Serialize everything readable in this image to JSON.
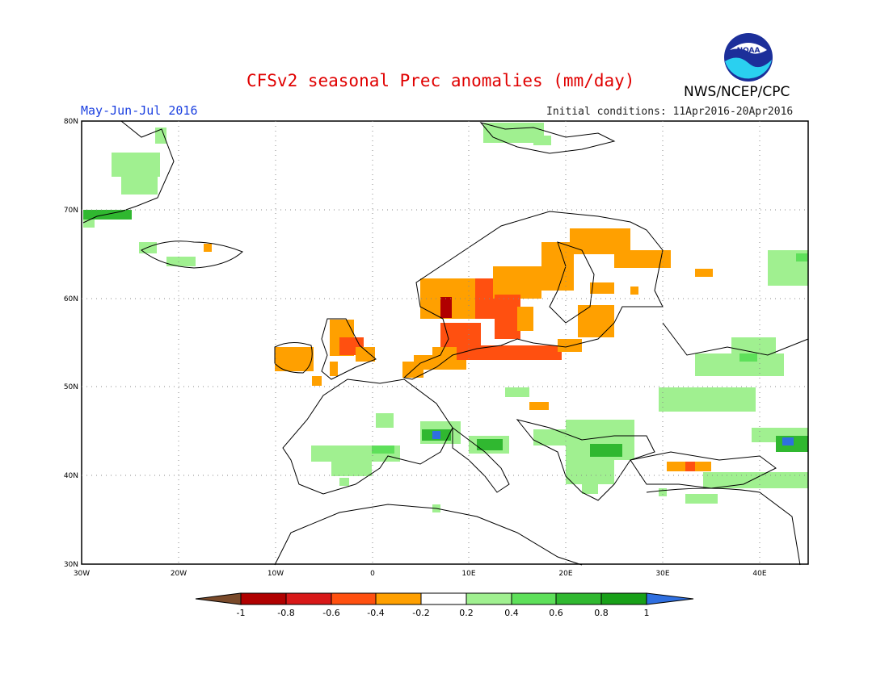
{
  "header": {
    "title": "CFSv2 seasonal Prec anomalies (mm/day)",
    "period": "May-Jun-Jul 2016",
    "initial_conditions": "Initial conditions: 11Apr2016-20Apr2016",
    "agency": "NWS/NCEP/CPC",
    "logo_text": "NOAA"
  },
  "map": {
    "lon_range": [
      -30,
      45
    ],
    "lat_range": [
      30,
      80
    ],
    "lon_ticks": [
      "30W",
      "20W",
      "10W",
      "0",
      "10E",
      "20E",
      "30E",
      "40E"
    ],
    "lat_ticks": [
      "80N",
      "70N",
      "60N",
      "50N",
      "40N",
      "30N"
    ]
  },
  "colorbar": {
    "labels": [
      "-1",
      "-0.8",
      "-0.6",
      "-0.4",
      "-0.2",
      "0.2",
      "0.4",
      "0.6",
      "0.8",
      "1"
    ],
    "colors": {
      "below_min": "#7a4a2a",
      "m1_m08": "#b00000",
      "m08_m06": "#d81818",
      "m06_m04": "#ff5010",
      "m04_m02": "#ffa000",
      "m02_02": "#ffffff",
      "p02_p04": "#a0f090",
      "p04_p06": "#5ee05a",
      "p06_p08": "#30b830",
      "p08_p1": "#18a018",
      "above_max": "#2f6fe0"
    }
  }
}
